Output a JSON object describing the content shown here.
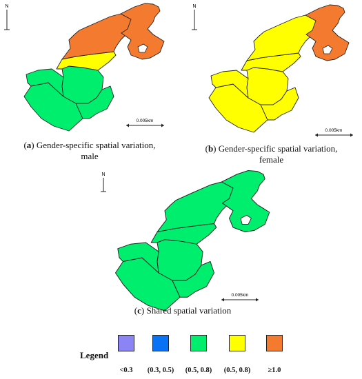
{
  "colors": {
    "orange": "#f47a30",
    "yellow": "#ffff00",
    "green": "#00ee6e",
    "purple": "#8a84f4",
    "blue": "#0a72f4",
    "outline": "#222222"
  },
  "icons": {
    "north_arrow": "north-arrow-icon",
    "scale_bar": "scale-bar-icon"
  },
  "panels": {
    "a": {
      "north_letter": "N",
      "scale_label": "0.005km",
      "caption_label": "a",
      "caption_text": "Gender-specific spatial variation,",
      "caption_line2": "male",
      "fills": [
        "#00ee6e",
        "#00ee6e",
        "#00ee6e",
        "#00ee6e",
        "#ffff00",
        "#f47a30",
        "#f47a30"
      ]
    },
    "b": {
      "north_letter": "N",
      "scale_label": "0.005km",
      "caption_label": "b",
      "caption_text": "Gender-specific spatial variation,",
      "caption_line2": "female",
      "fills": [
        "#ffff00",
        "#ffff00",
        "#ffff00",
        "#ffff00",
        "#ffff00",
        "#ffff00",
        "#f47a30"
      ]
    },
    "c": {
      "north_letter": "N",
      "scale_label": "0.005km",
      "caption_label": "c",
      "caption_text": "Shared spatial variation",
      "fills": [
        "#00ee6e",
        "#00ee6e",
        "#00ee6e",
        "#00ee6e",
        "#00ee6e",
        "#00ee6e",
        "#00ee6e"
      ]
    }
  },
  "legend": {
    "title": "Legend",
    "items": [
      {
        "label": "<0.3",
        "color": "#8a84f4"
      },
      {
        "label": "(0.3, 0.5)",
        "color": "#0a72f4"
      },
      {
        "label": "(0.5, 0.8)",
        "color": "#00ee6e"
      },
      {
        "label": "(0.5, 0.8)",
        "color": "#ffff00"
      },
      {
        "label": "≥1.0",
        "color": "#f47a30"
      }
    ]
  }
}
